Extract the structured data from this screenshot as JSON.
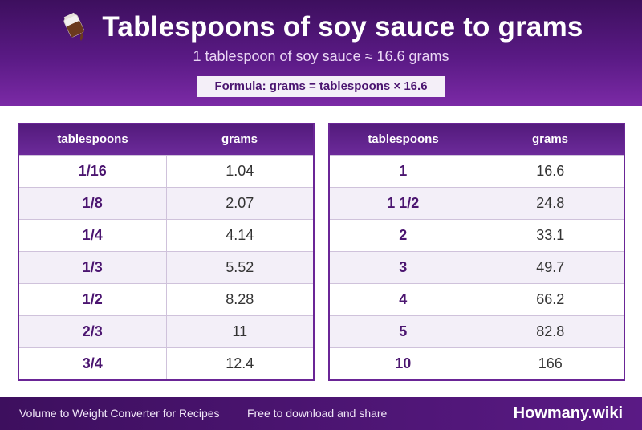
{
  "header": {
    "title": "Tablespoons of soy sauce to grams",
    "subtitle": "1 tablespoon of soy sauce ≈ 16.6 grams",
    "formula": "Formula: grams = tablespoons × 16.6",
    "icon": "soy-sauce-bottle-icon"
  },
  "table_left": {
    "headers": [
      "tablespoons",
      "grams"
    ],
    "rows": [
      {
        "tbsp": "1/16",
        "grams": "1.04"
      },
      {
        "tbsp": "1/8",
        "grams": "2.07"
      },
      {
        "tbsp": "1/4",
        "grams": "4.14"
      },
      {
        "tbsp": "1/3",
        "grams": "5.52"
      },
      {
        "tbsp": "1/2",
        "grams": "8.28"
      },
      {
        "tbsp": "2/3",
        "grams": "11"
      },
      {
        "tbsp": "3/4",
        "grams": "12.4"
      }
    ]
  },
  "table_right": {
    "headers": [
      "tablespoons",
      "grams"
    ],
    "rows": [
      {
        "tbsp": "1",
        "grams": "16.6"
      },
      {
        "tbsp": "1 1/2",
        "grams": "24.8"
      },
      {
        "tbsp": "2",
        "grams": "33.1"
      },
      {
        "tbsp": "3",
        "grams": "49.7"
      },
      {
        "tbsp": "4",
        "grams": "66.2"
      },
      {
        "tbsp": "5",
        "grams": "82.8"
      },
      {
        "tbsp": "10",
        "grams": "166"
      }
    ]
  },
  "footer": {
    "left": "Volume to Weight Converter for Recipes",
    "middle": "Free to download and share",
    "brand": "Howmany.wiki"
  },
  "colors": {
    "brand_purple": "#5a1a85",
    "header_text": "#ffffff",
    "alt_row": "#f3eff8"
  }
}
